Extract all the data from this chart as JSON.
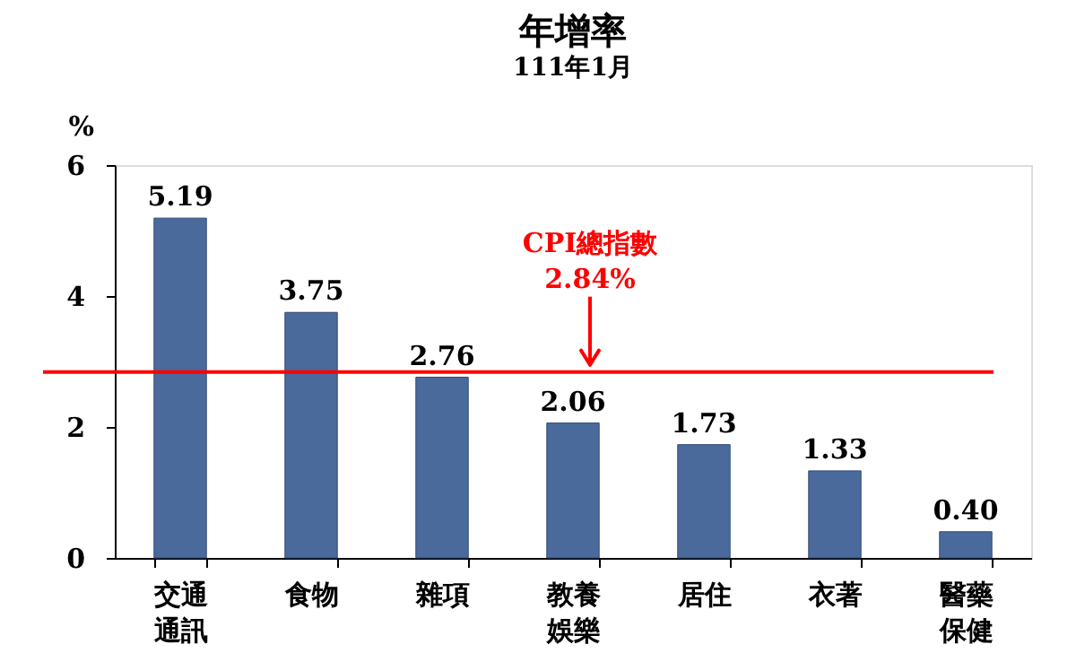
{
  "chart_data": {
    "type": "bar",
    "title": "年增率",
    "subtitle": "111年1月",
    "ylabel": "%",
    "categories": [
      "交通通訊",
      "食物",
      "雜項",
      "教養娛樂",
      "居住",
      "衣著",
      "醫藥保健"
    ],
    "values": [
      5.19,
      3.75,
      2.76,
      2.06,
      1.73,
      1.33,
      0.4
    ],
    "value_labels": [
      "5.19",
      "3.75",
      "2.76",
      "2.06",
      "1.73",
      "1.33",
      "0.40"
    ],
    "color": "#4a6a9c",
    "ylim": [
      0,
      6
    ],
    "yticks": [
      0,
      2,
      4,
      6
    ],
    "grid": false,
    "ref_lines": [
      {
        "axis": "y",
        "value": 2.84,
        "label": "CPI總指數\n2.84%",
        "color": "#ff0000"
      }
    ]
  }
}
